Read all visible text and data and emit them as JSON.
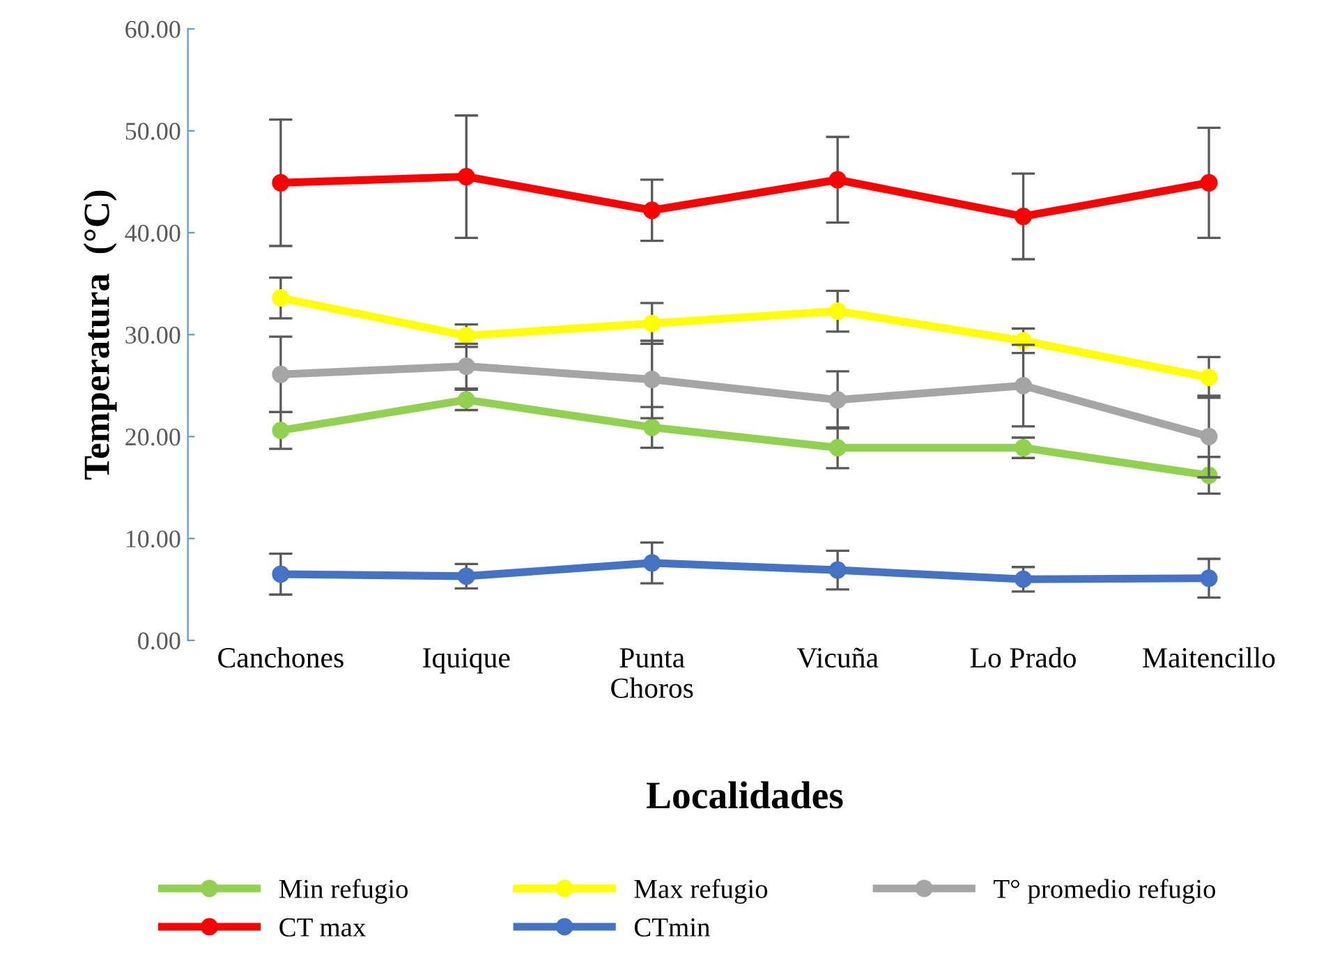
{
  "chart_data": {
    "type": "line",
    "xlabel": "Localidades",
    "ylabel": "Temperatura  (°C)",
    "categories": [
      "Canchones",
      "Iquique",
      "Punta\nChoros",
      "Vicuña",
      "Lo Prado",
      "Maitencillo"
    ],
    "ylim": [
      0,
      60
    ],
    "yticks": [
      {
        "value": 0,
        "label": "0.00"
      },
      {
        "value": 10,
        "label": "10.00"
      },
      {
        "value": 20,
        "label": "20.00"
      },
      {
        "value": 30,
        "label": "30.00"
      },
      {
        "value": 40,
        "label": "40.00"
      },
      {
        "value": 50,
        "label": "50.00"
      },
      {
        "value": 60,
        "label": "60.00"
      }
    ],
    "grid": false,
    "legend": "bottom",
    "marker": "circle",
    "line_style": "solid",
    "series": [
      {
        "name": "Min refugio",
        "color": "#92d050",
        "values": [
          20.6,
          23.6,
          20.9,
          18.9,
          18.9,
          16.2
        ],
        "errors": [
          1.8,
          1.0,
          2.0,
          2.0,
          1.0,
          1.8
        ]
      },
      {
        "name": "Max refugio",
        "color": "#ffff00",
        "values": [
          33.6,
          29.9,
          31.1,
          32.3,
          29.4,
          25.8
        ],
        "errors": [
          2.0,
          1.1,
          2.0,
          2.0,
          1.2,
          2.0
        ]
      },
      {
        "name": "T° promedio refugio",
        "color": "#a5a5a5",
        "values": [
          26.1,
          26.9,
          25.6,
          23.6,
          25.0,
          20.0
        ],
        "errors": [
          3.7,
          2.2,
          3.8,
          2.8,
          4.0,
          4.0
        ]
      },
      {
        "name": "CT max",
        "color": "#ff0000",
        "values": [
          44.9,
          45.5,
          42.2,
          45.2,
          41.6,
          44.9
        ],
        "errors": [
          6.2,
          6.0,
          3.0,
          4.2,
          4.2,
          5.4
        ]
      },
      {
        "name": "CTmin",
        "color": "#4472c4",
        "values": [
          6.5,
          6.3,
          7.6,
          6.9,
          6.0,
          6.1
        ],
        "errors": [
          2.0,
          1.2,
          2.0,
          1.9,
          1.2,
          1.9
        ]
      }
    ]
  }
}
